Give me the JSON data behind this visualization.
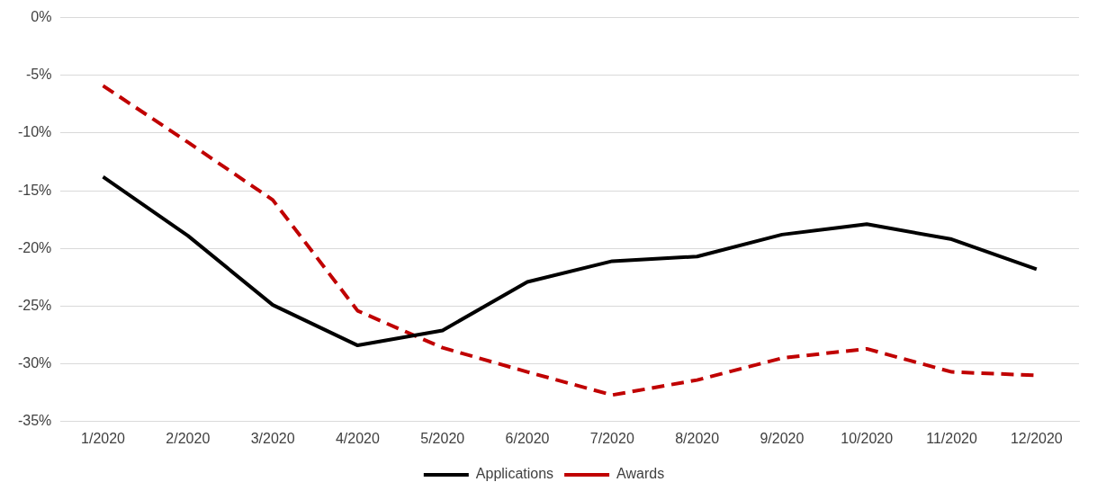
{
  "chart_data": {
    "type": "line",
    "categories": [
      "1/2020",
      "2/2020",
      "3/2020",
      "4/2020",
      "5/2020",
      "6/2020",
      "7/2020",
      "8/2020",
      "9/2020",
      "10/2020",
      "11/2020",
      "12/2020"
    ],
    "series": [
      {
        "name": "Applications",
        "color": "#000000",
        "line_style": "solid",
        "values": [
          -13.8,
          -18.9,
          -24.9,
          -28.4,
          -27.1,
          -22.9,
          -21.1,
          -20.7,
          -18.8,
          -17.9,
          -19.2,
          -21.8
        ]
      },
      {
        "name": "Awards",
        "color": "#c00000",
        "line_style": "dashed",
        "values": [
          -5.9,
          -10.8,
          -15.8,
          -25.4,
          -28.6,
          -30.7,
          -32.7,
          -31.4,
          -29.5,
          -28.7,
          -30.7,
          -31.0
        ]
      }
    ],
    "ylim": [
      -35,
      0
    ],
    "yticks": [
      {
        "value": 0,
        "label": "0%"
      },
      {
        "value": -5,
        "label": "-5%"
      },
      {
        "value": -10,
        "label": "-10%"
      },
      {
        "value": -15,
        "label": "-15%"
      },
      {
        "value": -20,
        "label": "-20%"
      },
      {
        "value": -25,
        "label": "-25%"
      },
      {
        "value": -30,
        "label": "-30%"
      },
      {
        "value": -35,
        "label": "-35%"
      }
    ],
    "grid": "y",
    "legend": "bottom",
    "marker": "none"
  }
}
